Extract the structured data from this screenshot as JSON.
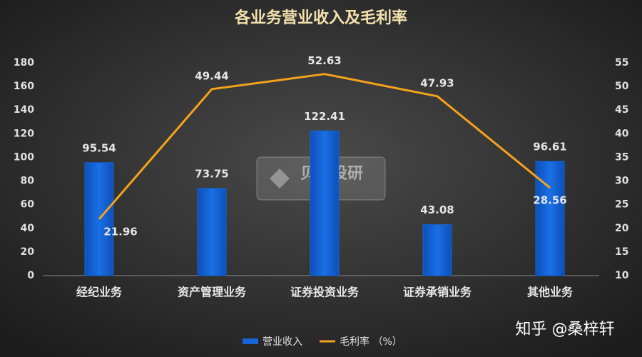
{
  "chart_data": {
    "type": "bar",
    "title": "各业务营业收入及毛利率",
    "categories": [
      "经纪业务",
      "资产管理业务",
      "证券投资业务",
      "证券承销业务",
      "其他业务"
    ],
    "series": [
      {
        "name": "营业收入",
        "type": "bar",
        "color": "#1565d8",
        "values": [
          95.54,
          73.75,
          122.41,
          43.08,
          96.61
        ]
      },
      {
        "name": "毛利率 （%）",
        "type": "line",
        "axis": "y2",
        "color": "#f5a21c",
        "values": [
          21.96,
          49.44,
          52.63,
          47.93,
          28.56
        ]
      }
    ],
    "ylim": [
      0,
      180
    ],
    "yticks": [
      0,
      20,
      40,
      60,
      80,
      100,
      120,
      140,
      160,
      180
    ],
    "y2lim": [
      10,
      55
    ],
    "y2ticks": [
      10,
      15,
      20,
      25,
      30,
      35,
      40,
      45,
      50,
      55
    ],
    "grid": false,
    "legend": "bottom",
    "watermark": "贝壳投研",
    "credit": "知乎 @桑梓轩"
  }
}
